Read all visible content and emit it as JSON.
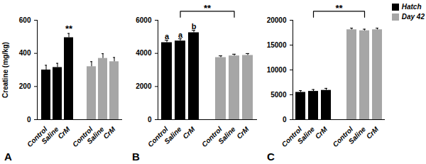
{
  "chart_data": [
    {
      "type": "bar",
      "title": "A",
      "ylabel": "Creatine (mg/kg)",
      "categories": [
        "Control",
        "Saline",
        "CrM"
      ],
      "series": [
        {
          "name": "Hatch",
          "color": "#000000",
          "values": [
            300,
            315,
            495
          ],
          "errors": [
            28,
            25,
            25
          ]
        },
        {
          "name": "Day 42",
          "color": "#a6a6a6",
          "values": [
            320,
            370,
            350
          ],
          "errors": [
            30,
            28,
            25
          ]
        }
      ],
      "ylim": [
        0,
        600
      ],
      "yticks": [
        0,
        200,
        400,
        600
      ],
      "annotations": [
        {
          "text": "**",
          "series": "Hatch",
          "category": "CrM"
        }
      ]
    },
    {
      "type": "bar",
      "title": "B",
      "categories": [
        "Control",
        "Saline",
        "CrM"
      ],
      "series": [
        {
          "name": "Hatch",
          "color": "#000000",
          "values": [
            4650,
            4750,
            5250
          ],
          "errors": [
            150,
            130,
            150
          ]
        },
        {
          "name": "Day 42",
          "color": "#a6a6a6",
          "values": [
            3750,
            3850,
            3880
          ],
          "errors": [
            100,
            100,
            110
          ]
        }
      ],
      "ylim": [
        0,
        6000
      ],
      "yticks": [
        0,
        2000,
        4000,
        6000
      ],
      "annotations": [
        {
          "text": "a",
          "series": "Hatch",
          "category": "Control"
        },
        {
          "text": "a",
          "series": "Hatch",
          "category": "Saline"
        },
        {
          "text": "b",
          "series": "Hatch",
          "category": "CrM"
        }
      ],
      "brackets": [
        {
          "text": "**",
          "between": [
            "Hatch",
            "Day 42"
          ]
        }
      ]
    },
    {
      "type": "bar",
      "title": "C",
      "categories": [
        "Control",
        "Saline",
        "CrM"
      ],
      "series": [
        {
          "name": "Hatch",
          "color": "#000000",
          "values": [
            5500,
            5700,
            5900
          ],
          "errors": [
            350,
            350,
            400
          ]
        },
        {
          "name": "Day 42",
          "color": "#a6a6a6",
          "values": [
            18100,
            17900,
            18100
          ],
          "errors": [
            300,
            300,
            300
          ]
        }
      ],
      "ylim": [
        0,
        20000
      ],
      "yticks": [
        0,
        5000,
        10000,
        15000,
        20000
      ],
      "brackets": [
        {
          "text": "**",
          "between": [
            "Hatch",
            "Day 42"
          ]
        }
      ],
      "legend": "top-right"
    }
  ]
}
